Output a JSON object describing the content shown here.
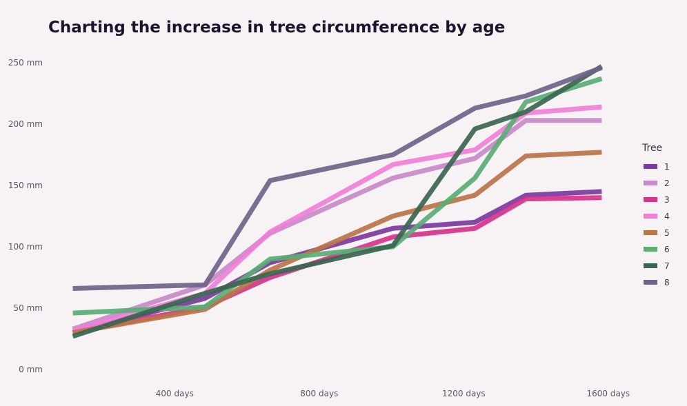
{
  "chart_data": {
    "type": "line",
    "title": "Charting the increase in tree circumference by age",
    "xlabel": "",
    "ylabel": "",
    "x_tick_labels": [
      "400 days",
      "800 days",
      "1200 days",
      "1600 days"
    ],
    "y_tick_labels": [
      "0 mm",
      "50 mm",
      "100 mm",
      "150 mm",
      "200 mm",
      "250 mm"
    ],
    "x_ticks": [
      400,
      800,
      1200,
      1600
    ],
    "y_ticks": [
      0,
      50,
      100,
      150,
      200,
      250
    ],
    "xlim": [
      50,
      1650
    ],
    "ylim": [
      0,
      250
    ],
    "grid": false,
    "legend_title": "Tree",
    "legend_position": "right",
    "x": [
      118,
      484,
      664,
      1004,
      1231,
      1372,
      1582
    ],
    "series": [
      {
        "name": "1",
        "color": "#7b3a9e",
        "values": [
          30,
          58,
          87,
          115,
          120,
          142,
          145
        ]
      },
      {
        "name": "2",
        "color": "#c88ac8",
        "values": [
          33,
          69,
          111,
          156,
          172,
          203,
          203
        ]
      },
      {
        "name": "3",
        "color": "#d6338a",
        "values": [
          30,
          51,
          75,
          108,
          115,
          139,
          140
        ]
      },
      {
        "name": "4",
        "color": "#f07fd6",
        "values": [
          32,
          62,
          112,
          167,
          179,
          209,
          214
        ]
      },
      {
        "name": "5",
        "color": "#bb7448",
        "values": [
          30,
          49,
          81,
          125,
          142,
          174,
          177
        ]
      },
      {
        "name": "6",
        "color": "#5aae74",
        "values": [
          46,
          51,
          90,
          100,
          156,
          218,
          237
        ]
      },
      {
        "name": "7",
        "color": "#3a6650",
        "values": [
          27,
          62,
          78,
          101,
          196,
          210,
          247
        ]
      },
      {
        "name": "8",
        "color": "#6e6488",
        "values": [
          66,
          69,
          154,
          175,
          213,
          223,
          246
        ]
      }
    ]
  }
}
